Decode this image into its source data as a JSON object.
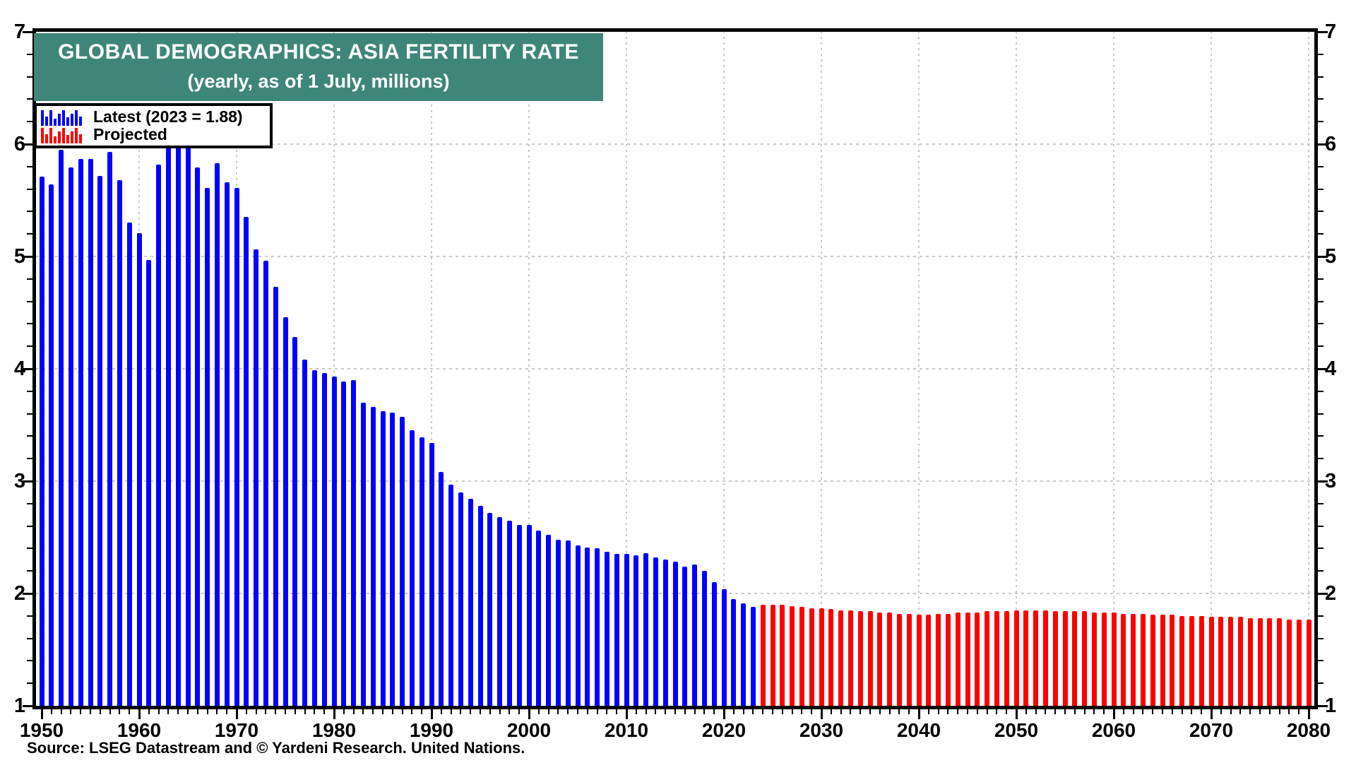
{
  "title": {
    "line1": "GLOBAL DEMOGRAPHICS: ASIA FERTILITY RATE",
    "line2": "(yearly, as of 1 July, millions)"
  },
  "source_note": "Source: LSEG Datastream and © Yardeni Research. United Nations.",
  "colors": {
    "banner_background": "#3E8679",
    "latest_bars": "#0000FF",
    "projected_bars": "#FF0000",
    "grid": "#C9C9C9",
    "axis": "#000000",
    "text": "#000000"
  },
  "icons": {
    "legend_latest": "mini-bar-chart-icon",
    "legend_projected": "mini-bar-chart-icon"
  },
  "chart_data": {
    "type": "bar",
    "title": "GLOBAL DEMOGRAPHICS: ASIA FERTILITY RATE",
    "subtitle": "(yearly, as of 1 July, millions)",
    "xlabel": "",
    "ylabel": "",
    "x_range": [
      1950,
      2080
    ],
    "y_range": [
      1,
      7
    ],
    "y_ticks": [
      7,
      6,
      5,
      4,
      3,
      2,
      1
    ],
    "x_ticks": [
      1950,
      1960,
      1970,
      1980,
      1990,
      2000,
      2010,
      2020,
      2030,
      2040,
      2050,
      2060,
      2070,
      2080
    ],
    "grid": true,
    "legend_position": "top-left",
    "series": [
      {
        "name": "Latest (2023 = 1.88)",
        "color": "#0000FF",
        "start_year": 1950,
        "end_year": 2023,
        "values": [
          5.71,
          5.64,
          5.95,
          5.79,
          5.87,
          5.87,
          5.72,
          5.93,
          5.68,
          5.3,
          5.21,
          4.97,
          5.82,
          5.98,
          5.98,
          5.97,
          5.79,
          5.61,
          5.83,
          5.66,
          5.61,
          5.35,
          5.06,
          4.96,
          4.73,
          4.46,
          4.28,
          4.08,
          3.99,
          3.96,
          3.93,
          3.89,
          3.9,
          3.7,
          3.66,
          3.62,
          3.61,
          3.57,
          3.45,
          3.39,
          3.34,
          3.08,
          2.97,
          2.9,
          2.84,
          2.78,
          2.72,
          2.68,
          2.65,
          2.61,
          2.61,
          2.56,
          2.52,
          2.48,
          2.47,
          2.43,
          2.41,
          2.4,
          2.37,
          2.35,
          2.35,
          2.34,
          2.36,
          2.32,
          2.3,
          2.28,
          2.24,
          2.26,
          2.2,
          2.1,
          2.04,
          1.95,
          1.91,
          1.88
        ]
      },
      {
        "name": "Projected",
        "color": "#FF0000",
        "start_year": 2024,
        "end_year": 2080,
        "values": [
          1.9,
          1.9,
          1.9,
          1.89,
          1.88,
          1.87,
          1.87,
          1.86,
          1.85,
          1.85,
          1.84,
          1.84,
          1.83,
          1.83,
          1.82,
          1.82,
          1.81,
          1.81,
          1.82,
          1.82,
          1.83,
          1.83,
          1.83,
          1.84,
          1.84,
          1.84,
          1.85,
          1.85,
          1.85,
          1.85,
          1.84,
          1.84,
          1.84,
          1.84,
          1.83,
          1.83,
          1.83,
          1.82,
          1.82,
          1.82,
          1.81,
          1.81,
          1.81,
          1.8,
          1.8,
          1.8,
          1.79,
          1.79,
          1.79,
          1.79,
          1.78,
          1.78,
          1.78,
          1.78,
          1.77,
          1.77,
          1.77
        ]
      }
    ]
  }
}
